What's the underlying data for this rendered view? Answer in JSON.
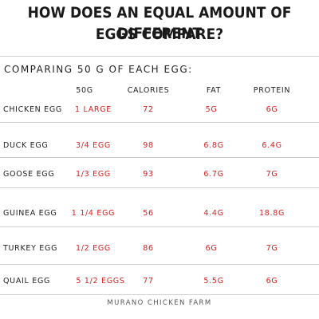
{
  "title": {
    "line1": "HOW DOES AN EQUAL AMOUNT OF DIFFERENT",
    "line2": "EGGS COMPARE?"
  },
  "subtitle": "COMPARING 50 G OF EACH EGG:",
  "table": {
    "headers": [
      "50G",
      "CALORIES",
      "FAT",
      "PROTEIN"
    ],
    "rows": [
      {
        "egg": "CHICKEN EGG",
        "amount": "1 LARGE",
        "calories": "72",
        "fat": "5G",
        "protein": "6G"
      },
      {
        "egg": "DUCK EGG",
        "amount": "3/4 EGG",
        "calories": "98",
        "fat": "6.8G",
        "protein": "6.4G"
      },
      {
        "egg": "GOOSE EGG",
        "amount": "1/3 EGG",
        "calories": "93",
        "fat": "6.7G",
        "protein": "7G"
      },
      {
        "egg": "GUINEA EGG",
        "amount": "1 1/4 EGG",
        "calories": "56",
        "fat": "4.4G",
        "protein": "18.8G"
      },
      {
        "egg": "TURKEY EGG",
        "amount": "1/2 EGG",
        "calories": "86",
        "fat": "6G",
        "protein": "7G"
      },
      {
        "egg": "QUAIL EGG",
        "amount": "5 1/2 EGGS",
        "calories": "77",
        "fat": "5.5G",
        "protein": "6G"
      }
    ]
  },
  "footer": "MURANO CHICKEN FARM",
  "colors": {
    "value_red": "#d62020",
    "rule_gray": "#cfcfcf"
  }
}
